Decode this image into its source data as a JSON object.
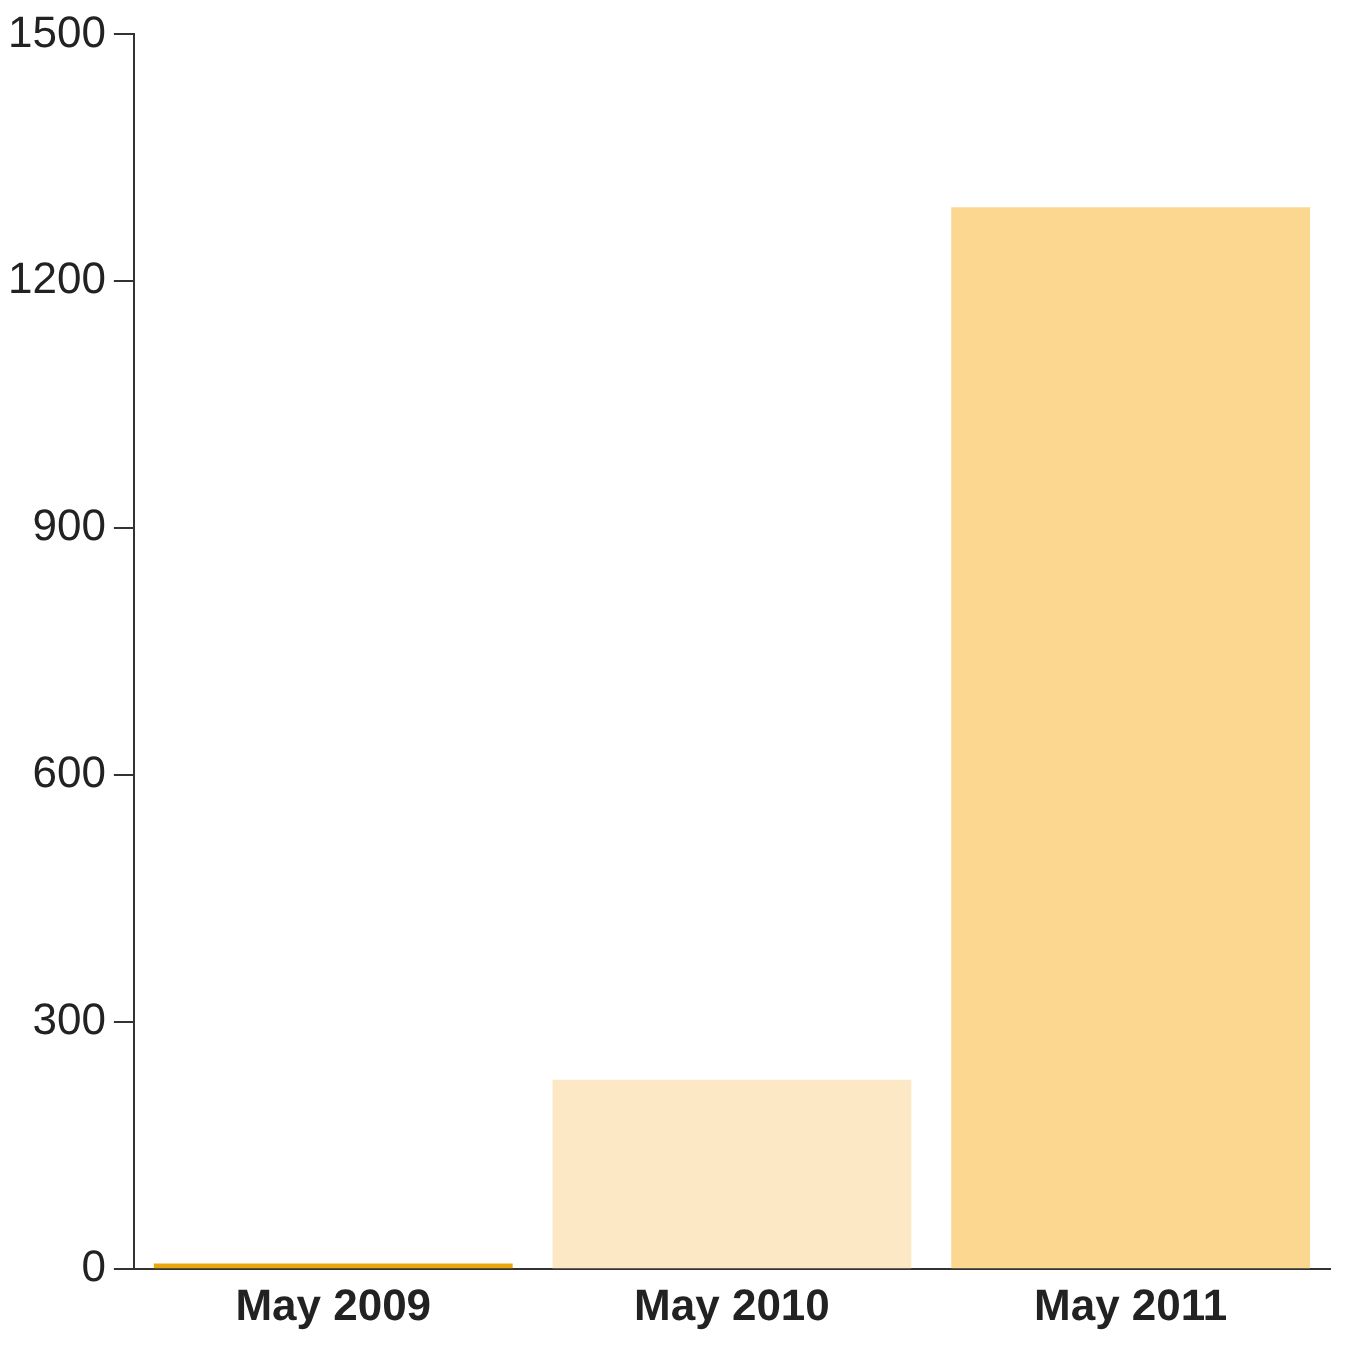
{
  "chart_data": {
    "type": "bar",
    "categories": [
      "May 2009",
      "May 2010",
      "May 2011"
    ],
    "values": [
      7,
      230,
      1290
    ],
    "colors": [
      "#e8a70c",
      "#fde8c6",
      "#fcd78f"
    ],
    "ylim": [
      0,
      1500
    ],
    "yticks": [
      0,
      300,
      600,
      900,
      1200,
      1500
    ],
    "grid": false,
    "legend": false
  }
}
